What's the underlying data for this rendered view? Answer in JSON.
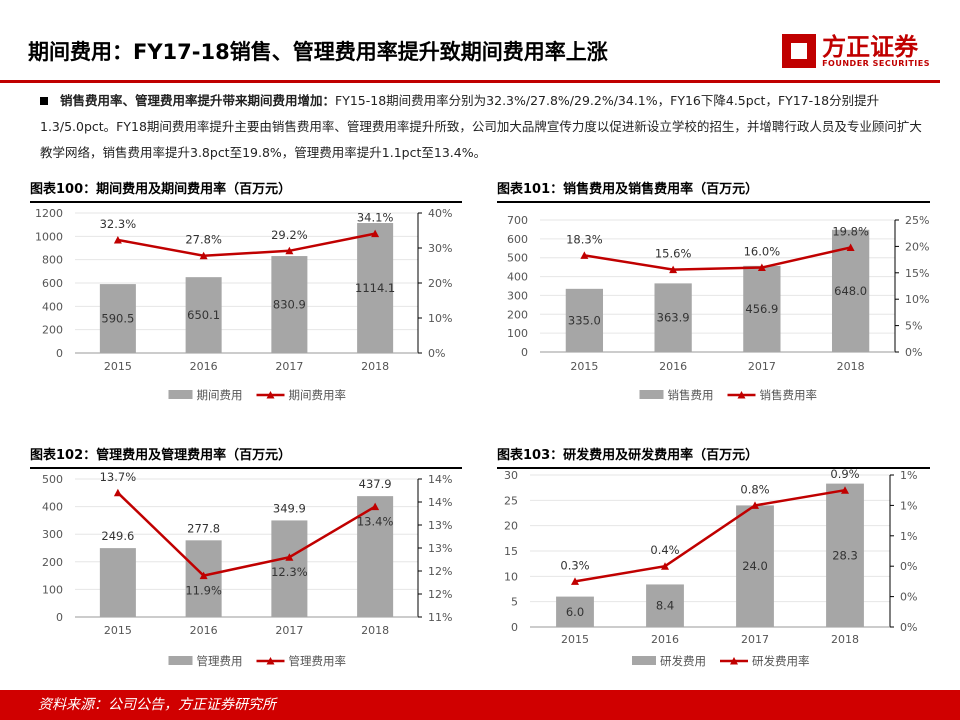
{
  "header": {
    "title": "期间费用：FY17-18销售、管理费用率提升致期间费用率上涨",
    "logo_text": "方正证券",
    "logo_sub": "FOUNDER SECURITIES"
  },
  "summary": {
    "lead": "销售费用率、管理费用率提升带来期间费用增加：",
    "body": "FY15-18期间费用率分别为32.3%/27.8%/29.2%/34.1%，FY16下降4.5pct，FY17-18分别提升1.3/5.0pct。FY18期间费用率提升主要由销售费用率、管理费用率提升所致，公司加大品牌宣传力度以促进新设立学校的招生，并增聘行政人员及专业顾问扩大教学网络，销售费用率提升3.8pct至19.8%，管理费用率提升1.1pct至13.4%。"
  },
  "footer": {
    "source": "资料来源：公司公告，方正证券研究所"
  },
  "colors": {
    "bar": "#a6a6a6",
    "line": "#c00000",
    "accent": "#d00000"
  },
  "chart_data": [
    {
      "type": "bar+line",
      "title": "图表100：期间费用及期间费用率（百万元）",
      "categories": [
        "2015",
        "2016",
        "2017",
        "2018"
      ],
      "bar": {
        "name": "期间费用",
        "values": [
          590.5,
          650.1,
          830.9,
          1114.1
        ]
      },
      "line": {
        "name": "期间费用率",
        "values": [
          32.3,
          27.8,
          29.2,
          34.1
        ],
        "labels": [
          "32.3%",
          "27.8%",
          "29.2%",
          "34.1%"
        ]
      },
      "ylim": [
        0,
        1200
      ],
      "yticks": [
        "0",
        "200",
        "400",
        "600",
        "800",
        "1000",
        "1200"
      ],
      "y2lim": [
        0,
        40
      ],
      "y2ticks": [
        "0%",
        "10%",
        "20%",
        "30%",
        "40%"
      ],
      "legend": "bottom"
    },
    {
      "type": "bar+line",
      "title": "图表101：销售费用及销售费用率（百万元）",
      "categories": [
        "2015",
        "2016",
        "2017",
        "2018"
      ],
      "bar": {
        "name": "销售费用",
        "values": [
          335.0,
          363.9,
          456.9,
          648.0
        ]
      },
      "line": {
        "name": "销售费用率",
        "values": [
          18.3,
          15.6,
          16.0,
          19.8
        ],
        "labels": [
          "18.3%",
          "15.6%",
          "16.0%",
          "19.8%"
        ]
      },
      "ylim": [
        0,
        700
      ],
      "yticks": [
        "0",
        "100",
        "200",
        "300",
        "400",
        "500",
        "600",
        "700"
      ],
      "y2lim": [
        0,
        25
      ],
      "y2ticks": [
        "0%",
        "5%",
        "10%",
        "15%",
        "20%",
        "25%"
      ],
      "legend": "bottom"
    },
    {
      "type": "bar+line",
      "title": "图表102：管理费用及管理费用率（百万元）",
      "categories": [
        "2015",
        "2016",
        "2017",
        "2018"
      ],
      "bar": {
        "name": "管理费用",
        "values": [
          249.6,
          277.8,
          349.9,
          437.9
        ]
      },
      "line": {
        "name": "管理费用率",
        "values": [
          13.7,
          11.9,
          12.3,
          13.4
        ],
        "labels": [
          "13.7%",
          "11.9%",
          "12.3%",
          "13.4%"
        ]
      },
      "ylim": [
        0,
        500
      ],
      "yticks": [
        "0",
        "100",
        "200",
        "300",
        "400",
        "500"
      ],
      "y2lim": [
        11,
        14
      ],
      "y2ticks": [
        "11%",
        "12%",
        "12%",
        "13%",
        "13%",
        "14%",
        "14%"
      ],
      "legend": "bottom"
    },
    {
      "type": "bar+line",
      "title": "图表103：研发费用及研发费用率（百万元）",
      "categories": [
        "2015",
        "2016",
        "2017",
        "2018"
      ],
      "bar": {
        "name": "研发费用",
        "values": [
          6.0,
          8.4,
          24.0,
          28.3
        ]
      },
      "line": {
        "name": "研发费用率",
        "values": [
          0.3,
          0.4,
          0.8,
          0.9
        ],
        "labels": [
          "0.3%",
          "0.4%",
          "0.8%",
          "0.9%"
        ]
      },
      "ylim": [
        0,
        30
      ],
      "yticks": [
        "0",
        "5",
        "10",
        "15",
        "20",
        "25",
        "30"
      ],
      "y2lim": [
        0,
        1
      ],
      "y2ticks": [
        "0%",
        "0%",
        "0%",
        "1%",
        "1%",
        "1%"
      ],
      "legend": "bottom"
    }
  ]
}
